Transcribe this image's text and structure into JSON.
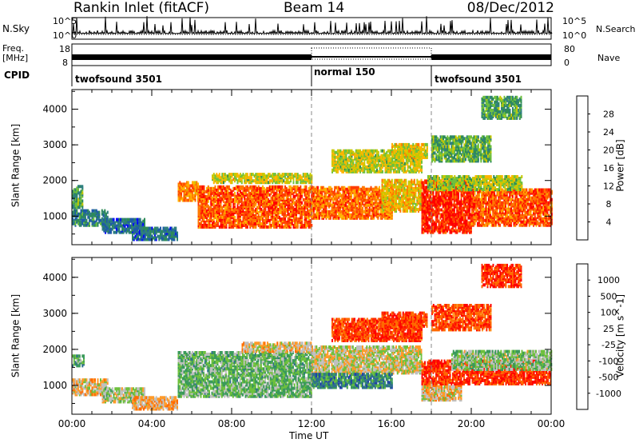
{
  "header": {
    "station": "Rankin Inlet (fitACF)",
    "beam": "Beam 14",
    "date": "08/Dec/2012"
  },
  "strip_labels": {
    "nsky": "N.Sky",
    "nsky_ticks": [
      "10^5",
      "10^0"
    ],
    "nsearch": "N.Search",
    "freq": "Freq.",
    "freq_unit": "[MHz]",
    "freq_ticks": [
      "18",
      "8"
    ],
    "nave_ticks": [
      "80",
      "0"
    ],
    "nave": "Nave",
    "cpid": "CPID"
  },
  "cpid_segments": [
    {
      "label": "twofsound 3501",
      "start_h": 0
    },
    {
      "label": "normal 150",
      "start_h": 12
    },
    {
      "label": "twofsound 3501",
      "start_h": 18
    }
  ],
  "chart_data": [
    {
      "type": "heatmap",
      "panel": "power",
      "ylabel": "Slant Range [km]",
      "colorbar_label": "Power [dB]",
      "colorbar_ticks": [
        "28",
        "24",
        "20",
        "16",
        "12",
        "8",
        "4"
      ],
      "colorbar_colors": [
        "#ff0000",
        "#ff3c00",
        "#ff7800",
        "#ffb400",
        "#c8c800",
        "#6ec03c",
        "#2e8b57",
        "#2f7f7f",
        "#1e5aa8",
        "#0000ff"
      ],
      "yticks": [
        "1000",
        "2000",
        "3000",
        "4000"
      ],
      "ylim": [
        200,
        4550
      ],
      "xlim": [
        0,
        24
      ],
      "regions": [
        {
          "t0": 0.0,
          "t1": 0.5,
          "r0": 1200,
          "r1": 1800,
          "c": 0.35
        },
        {
          "t0": 0.0,
          "t1": 1.8,
          "r0": 700,
          "r1": 1150,
          "c": 0.25
        },
        {
          "t0": 1.5,
          "t1": 3.6,
          "r0": 500,
          "r1": 900,
          "c": 0.2
        },
        {
          "t0": 3.0,
          "t1": 5.3,
          "r0": 300,
          "r1": 650,
          "c": 0.2
        },
        {
          "t0": 5.3,
          "t1": 6.3,
          "r0": 1400,
          "r1": 1900,
          "c": 0.75
        },
        {
          "t0": 6.3,
          "t1": 12.0,
          "r0": 650,
          "r1": 1800,
          "c": 0.85
        },
        {
          "t0": 7.0,
          "t1": 12.0,
          "r0": 1900,
          "r1": 2150,
          "c": 0.55
        },
        {
          "t0": 12.0,
          "t1": 16.0,
          "r0": 900,
          "r1": 1800,
          "c": 0.8
        },
        {
          "t0": 15.5,
          "t1": 17.5,
          "r0": 1100,
          "r1": 2000,
          "c": 0.65
        },
        {
          "t0": 13.0,
          "t1": 17.5,
          "r0": 2200,
          "r1": 2800,
          "c": 0.55
        },
        {
          "t0": 16.0,
          "t1": 17.8,
          "r0": 2600,
          "r1": 3000,
          "c": 0.6
        },
        {
          "t0": 17.5,
          "t1": 20.0,
          "r0": 500,
          "r1": 1950,
          "c": 0.95
        },
        {
          "t0": 20.0,
          "t1": 24.0,
          "r0": 700,
          "r1": 1700,
          "c": 0.85
        },
        {
          "t0": 17.8,
          "t1": 22.5,
          "r0": 1700,
          "r1": 2100,
          "c": 0.5
        },
        {
          "t0": 20.5,
          "t1": 22.5,
          "r0": 3700,
          "r1": 4300,
          "c": 0.35
        },
        {
          "t0": 18.0,
          "t1": 21.0,
          "r0": 2500,
          "r1": 3200,
          "c": 0.4
        }
      ]
    },
    {
      "type": "heatmap",
      "panel": "velocity",
      "xlabel": "Time UT",
      "ylabel": "Slant Range [km]",
      "colorbar_label": "Velocity [m s^-1]",
      "colorbar_ticks": [
        "1000",
        "500",
        "100",
        "25",
        "-25",
        "-100",
        "-500",
        "-1000"
      ],
      "colorbar_colors": [
        "#1e3caa",
        "#2e6e8e",
        "#3a9a5a",
        "#6ec03c",
        "#c0c0c0",
        "#ff9a28",
        "#ff6a00",
        "#ff2800",
        "#ff0000"
      ],
      "xticks": [
        "00:00",
        "04:00",
        "08:00",
        "12:00",
        "16:00",
        "20:00",
        "00:00"
      ],
      "yticks": [
        "1000",
        "2000",
        "3000",
        "4000"
      ],
      "ylim": [
        200,
        4550
      ],
      "xlim": [
        0,
        24
      ],
      "regions": [
        {
          "t0": 0.0,
          "t1": 0.6,
          "r0": 1500,
          "r1": 1800,
          "c": 0.7
        },
        {
          "t0": 0.0,
          "t1": 1.8,
          "r0": 700,
          "r1": 1150,
          "c": 0.45
        },
        {
          "t0": 1.5,
          "t1": 3.6,
          "r0": 500,
          "r1": 900,
          "c": 0.55
        },
        {
          "t0": 3.0,
          "t1": 5.3,
          "r0": 300,
          "r1": 650,
          "c": 0.4
        },
        {
          "t0": 5.3,
          "t1": 12.0,
          "r0": 650,
          "r1": 1900,
          "c": 0.65
        },
        {
          "t0": 8.5,
          "t1": 12.0,
          "r0": 1900,
          "r1": 2150,
          "c": 0.45
        },
        {
          "t0": 12.0,
          "t1": 17.5,
          "r0": 1300,
          "r1": 2050,
          "c": 0.5
        },
        {
          "t0": 12.0,
          "t1": 16.0,
          "r0": 900,
          "r1": 1300,
          "c": 0.8
        },
        {
          "t0": 13.0,
          "t1": 17.5,
          "r0": 2200,
          "r1": 2800,
          "c": 0.15
        },
        {
          "t0": 15.5,
          "t1": 17.8,
          "r0": 2600,
          "r1": 3000,
          "c": 0.15
        },
        {
          "t0": 17.5,
          "t1": 19.5,
          "r0": 550,
          "r1": 1000,
          "c": 0.45
        },
        {
          "t0": 17.5,
          "t1": 24.0,
          "r0": 1000,
          "r1": 1650,
          "c": 0.12
        },
        {
          "t0": 19.0,
          "t1": 24.0,
          "r0": 1400,
          "r1": 1900,
          "c": 0.6
        },
        {
          "t0": 20.5,
          "t1": 22.5,
          "r0": 3700,
          "r1": 4300,
          "c": 0.12
        },
        {
          "t0": 18.0,
          "t1": 21.0,
          "r0": 2500,
          "r1": 3200,
          "c": 0.18
        }
      ]
    }
  ]
}
